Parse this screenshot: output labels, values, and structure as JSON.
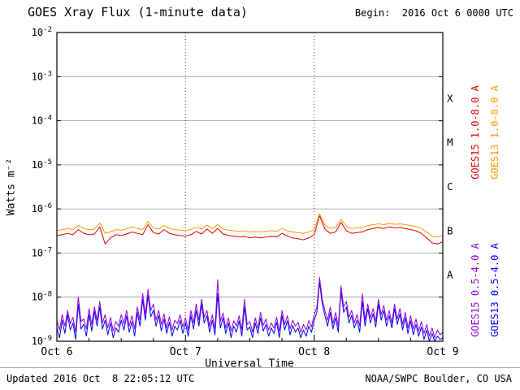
{
  "header": {
    "title": "GOES Xray Flux (1-minute data)",
    "begin": "Begin:  2016 Oct 6 0000 UTC"
  },
  "axes": {
    "ylabel": "Watts m⁻²",
    "xlabel": "Universal Time"
  },
  "footer": {
    "updated": "Updated 2016 Oct  8 22:05:12 UTC",
    "source": "NOAA/SWPC Boulder, CO USA"
  },
  "legend": [
    {
      "id": "goes15-long",
      "label": "GOES15 1.0-8.0 A",
      "color": "#e60000"
    },
    {
      "id": "goes13-long",
      "label": "GOES13 1.0-8.0 A",
      "color": "#ff9900"
    },
    {
      "id": "goes15-short",
      "label": "GOES15 0.5-4.0 A",
      "color": "#9400d3"
    },
    {
      "id": "goes13-short",
      "label": "GOES13 0.5-4.0 A",
      "color": "#0000ff"
    }
  ],
  "chart_data": {
    "type": "line",
    "title": "GOES Xray Flux (1-minute data)",
    "xlabel": "Universal Time",
    "ylabel": "Watts m-2",
    "x_axis": {
      "hours_span": 72,
      "day_labels": [
        "Oct 6",
        "Oct 7",
        "Oct 8",
        "Oct 9"
      ],
      "day_tick_hours": [
        0,
        24,
        48,
        72
      ],
      "dotted_day_lines_hours": [
        24,
        48
      ],
      "minor_tick_step_hours": 6
    },
    "y_axis": {
      "log": true,
      "min": 1e-09,
      "max": 0.01,
      "tick_exponents": [
        -2,
        -3,
        -4,
        -5,
        -6,
        -7,
        -8,
        -9
      ]
    },
    "flare_classes": [
      {
        "label": "X",
        "mid_exponent": -3.5
      },
      {
        "label": "M",
        "mid_exponent": -4.5
      },
      {
        "label": "C",
        "mid_exponent": -5.5
      },
      {
        "label": "B",
        "mid_exponent": -6.5
      },
      {
        "label": "A",
        "mid_exponent": -7.5
      }
    ],
    "series": [
      {
        "name": "GOES13 0.5-4.0 A",
        "color": "#0000ff",
        "scale": 1e-09,
        "step_hours": 0.5,
        "values": [
          2,
          1.2,
          3,
          1.5,
          4,
          1.8,
          2.6,
          1.1,
          7,
          1.9,
          2.4,
          1.3,
          4,
          1.7,
          4.8,
          2.2,
          6,
          1.9,
          3,
          1.4,
          2.6,
          1.2,
          2,
          1.6,
          3,
          1.8,
          3.8,
          1.6,
          2.8,
          1.3,
          4.5,
          2.2,
          9,
          3,
          11,
          3.6,
          5,
          2.2,
          3.8,
          1.7,
          3.2,
          1.5,
          2.7,
          1.3,
          2.2,
          1.8,
          3,
          1.5,
          2.6,
          1.3,
          3.8,
          1.9,
          5,
          2.2,
          7,
          2.6,
          3.8,
          1.6,
          3,
          1.4,
          12,
          2,
          3.4,
          1.5,
          2.6,
          1.2,
          2.2,
          1.6,
          2.9,
          1.3,
          6,
          1.8,
          2.1,
          1.2,
          2.6,
          1.5,
          3.4,
          1.7,
          2.4,
          1.3,
          2,
          1.5,
          2.7,
          1.2,
          3.8,
          1.8,
          2.9,
          1.4,
          2.3,
          1.6,
          2,
          1.2,
          1.8,
          1.3,
          2.2,
          1.6,
          3,
          4.5,
          22,
          7,
          3.8,
          2.2,
          4.5,
          1.9,
          3.4,
          1.6,
          14,
          4.5,
          6,
          2.6,
          3.8,
          2,
          3,
          1.6,
          8,
          2.2,
          5.5,
          2.6,
          4.2,
          2.1,
          7,
          3,
          5,
          2.2,
          3.8,
          2,
          5.5,
          2.4,
          4.2,
          1.8,
          3.4,
          1.5,
          2.9,
          1.4,
          2.4,
          1.3,
          2.1,
          1.1,
          1.8,
          1,
          1.5,
          1,
          1.3,
          1.1,
          1.2
        ]
      },
      {
        "name": "GOES15 0.5-4.0 A",
        "color": "#9400d3",
        "scale": 1e-09,
        "step_hours": 0.5,
        "values": [
          3,
          1.8,
          4,
          2.2,
          5,
          2.5,
          3.5,
          1.6,
          10,
          2.8,
          3.2,
          1.9,
          5.5,
          2.4,
          6,
          3,
          8,
          2.6,
          4,
          2,
          3.5,
          1.7,
          2.8,
          2.2,
          4,
          2.5,
          5,
          2.2,
          3.8,
          1.9,
          6,
          3,
          12,
          4,
          15,
          5,
          7,
          3,
          5,
          2.4,
          4.2,
          2,
          3.6,
          1.8,
          3,
          2.5,
          4,
          2.1,
          3.4,
          1.8,
          5,
          2.6,
          7,
          3,
          9,
          3.5,
          5,
          2.2,
          4,
          1.9,
          25,
          2.8,
          4.4,
          2,
          3.4,
          1.7,
          2.9,
          2.2,
          3.8,
          1.8,
          9,
          2.4,
          2.8,
          1.6,
          3.4,
          2,
          4.5,
          2.3,
          3.2,
          1.8,
          2.6,
          2,
          3.5,
          1.7,
          5,
          2.4,
          3.8,
          1.9,
          3,
          2.2,
          2.7,
          1.6,
          2.4,
          1.8,
          2.9,
          2.1,
          4,
          6,
          28,
          9,
          5,
          3,
          6,
          2.5,
          4.5,
          2.2,
          18,
          6,
          8,
          3.5,
          5,
          2.6,
          4,
          2.2,
          12,
          3,
          7,
          3.4,
          5.5,
          2.8,
          9,
          4,
          6.5,
          3,
          5,
          2.6,
          7,
          3.2,
          5.5,
          2.4,
          4.5,
          2,
          3.8,
          1.9,
          3.2,
          1.7,
          2.8,
          1.5,
          2.4,
          1.3,
          2,
          1.2,
          1.8,
          1.4,
          1.6
        ]
      },
      {
        "name": "GOES15 1.0-8.0 A",
        "color": "#e60000",
        "scale": 1e-07,
        "step_hours": 1,
        "values": [
          2.5,
          2.6,
          2.8,
          2.6,
          3.4,
          2.8,
          2.6,
          2.7,
          3.9,
          1.6,
          2.2,
          2.6,
          2.5,
          2.7,
          3.0,
          2.8,
          2.6,
          4.4,
          2.9,
          2.7,
          3.4,
          2.8,
          2.6,
          2.5,
          2.4,
          2.6,
          3.1,
          2.7,
          3.5,
          2.8,
          3.6,
          2.7,
          2.5,
          2.4,
          2.3,
          2.4,
          2.2,
          2.3,
          2.2,
          2.3,
          2.4,
          2.3,
          2.8,
          2.4,
          2.2,
          2.1,
          2.0,
          2.2,
          2.6,
          7.0,
          3.5,
          2.8,
          3.0,
          5.0,
          3.2,
          2.8,
          2.9,
          3.0,
          3.4,
          3.6,
          3.8,
          3.6,
          3.9,
          3.7,
          3.8,
          3.6,
          3.4,
          3.2,
          2.8,
          2.2,
          1.7,
          1.6,
          1.8
        ]
      },
      {
        "name": "GOES13 1.0-8.0 A",
        "color": "#ff9900",
        "scale": 1e-07,
        "step_hours": 1,
        "values": [
          3.2,
          3.4,
          3.6,
          3.4,
          4.2,
          3.6,
          3.4,
          3.5,
          4.8,
          2.8,
          3.0,
          3.4,
          3.3,
          3.5,
          3.9,
          3.6,
          3.4,
          5.2,
          3.7,
          3.5,
          4.2,
          3.6,
          3.4,
          3.3,
          3.2,
          3.4,
          3.9,
          3.5,
          4.3,
          3.6,
          4.4,
          3.5,
          3.3,
          3.2,
          3.1,
          3.2,
          3.0,
          3.1,
          3.0,
          3.1,
          3.2,
          3.1,
          3.6,
          3.2,
          3.0,
          2.9,
          2.8,
          3.0,
          3.4,
          7.8,
          4.3,
          3.6,
          3.8,
          5.8,
          4.0,
          3.6,
          3.7,
          3.8,
          4.2,
          4.4,
          4.6,
          4.4,
          4.7,
          4.5,
          4.6,
          4.4,
          4.2,
          4.0,
          3.6,
          3.0,
          2.4,
          2.3,
          2.5
        ]
      }
    ]
  }
}
